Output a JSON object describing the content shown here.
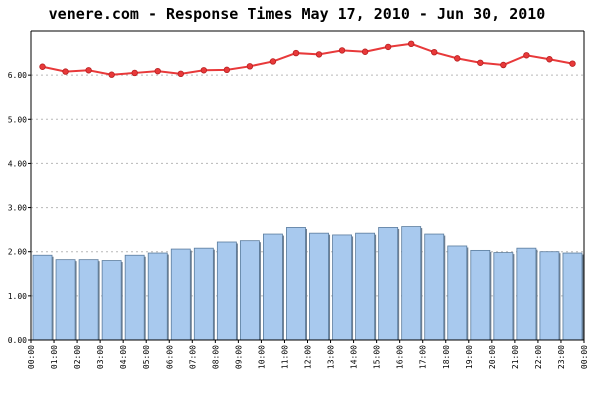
{
  "chart_data": {
    "type": "bar",
    "title": "venere.com - Response Times May 17, 2010 - Jun 30, 2010",
    "xlabel": "",
    "ylabel": "",
    "ylim": [
      0,
      7
    ],
    "yticks": [
      "0.00",
      "1.00",
      "2.00",
      "3.00",
      "4.00",
      "5.00",
      "6.00"
    ],
    "grid": true,
    "categories": [
      "00:00",
      "01:00",
      "02:00",
      "03:00",
      "04:00",
      "05:00",
      "06:00",
      "07:00",
      "08:00",
      "09:00",
      "10:00",
      "11:00",
      "12:00",
      "13:00",
      "14:00",
      "15:00",
      "16:00",
      "17:00",
      "18:00",
      "19:00",
      "20:00",
      "21:00",
      "22:00",
      "23:00"
    ],
    "x_end_label": "00:00",
    "series": [
      {
        "type": "bar",
        "color": "#a8c9ee",
        "values": [
          1.92,
          1.82,
          1.82,
          1.8,
          1.92,
          1.97,
          2.06,
          2.08,
          2.22,
          2.25,
          2.4,
          2.55,
          2.42,
          2.38,
          2.42,
          2.55,
          2.57,
          2.4,
          2.13,
          2.03,
          1.98,
          2.08,
          2.0,
          1.97
        ]
      },
      {
        "type": "line",
        "color": "#e8393a",
        "values": [
          6.19,
          6.08,
          6.11,
          6.01,
          6.05,
          6.09,
          6.03,
          6.11,
          6.12,
          6.2,
          6.31,
          6.5,
          6.47,
          6.56,
          6.53,
          6.64,
          6.71,
          6.52,
          6.38,
          6.28,
          6.23,
          6.45,
          6.36,
          6.26
        ]
      }
    ]
  }
}
